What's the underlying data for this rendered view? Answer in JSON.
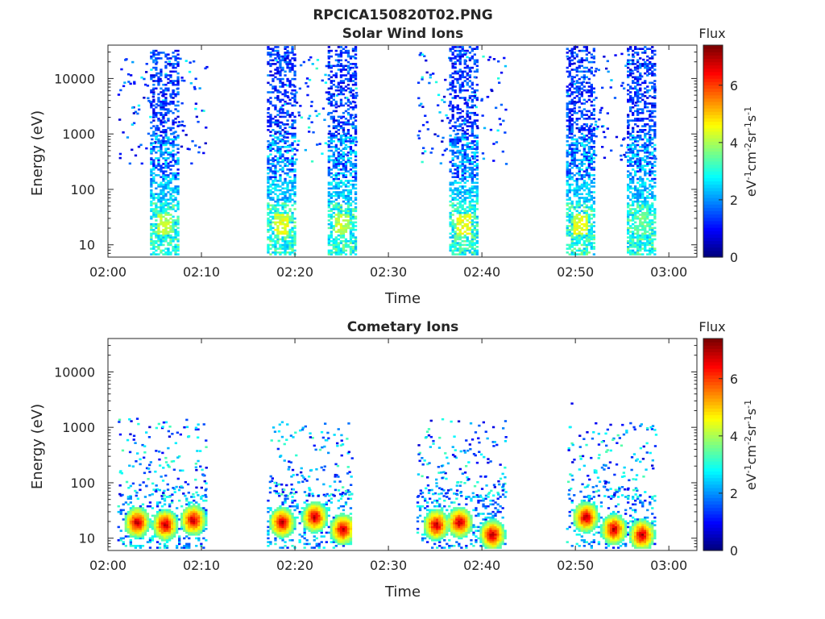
{
  "figure": {
    "title": "RPCICA150820T02.PNG"
  },
  "chart_data": [
    {
      "type": "heatmap",
      "title": "Solar Wind Ions",
      "xlabel": "Time",
      "ylabel": "Energy (eV)",
      "x_tick_labels": [
        "02:00",
        "02:10",
        "02:20",
        "02:30",
        "02:40",
        "02:50",
        "03:00"
      ],
      "x_tick_minutes": [
        0,
        10,
        20,
        30,
        40,
        50,
        60
      ],
      "xlim_minutes": [
        0,
        63
      ],
      "y_scale": "log",
      "ylim": [
        6,
        40000
      ],
      "y_tick_values": [
        10,
        100,
        1000,
        10000
      ],
      "y_tick_labels": [
        "10",
        "100",
        "1000",
        "10000"
      ],
      "colorbar": {
        "title": "Flux",
        "label": "eV-1cm-2sr-1s-1",
        "range": [
          0,
          7.4
        ],
        "tick_values": [
          0,
          2,
          4,
          6
        ],
        "tick_labels": [
          "0",
          "2",
          "4",
          "6"
        ],
        "colormap": "jet"
      },
      "bursts": [
        {
          "start_min": 4.5,
          "end_min": 7.5,
          "emin": 6,
          "emax": 35000,
          "peak_flux": 4.5,
          "peak_energy": 25
        },
        {
          "start_min": 17,
          "end_min": 20,
          "emin": 6,
          "emax": 40000,
          "peak_flux": 4.8,
          "peak_energy": 25
        },
        {
          "start_min": 23.5,
          "end_min": 26.5,
          "emin": 6,
          "emax": 40000,
          "peak_flux": 4.5,
          "peak_energy": 25
        },
        {
          "start_min": 36.5,
          "end_min": 39.5,
          "emin": 6,
          "emax": 40000,
          "peak_flux": 4.8,
          "peak_energy": 25
        },
        {
          "start_min": 49,
          "end_min": 52,
          "emin": 6,
          "emax": 40000,
          "peak_flux": 4.8,
          "peak_energy": 25
        },
        {
          "start_min": 55.5,
          "end_min": 58.5,
          "emin": 6,
          "emax": 40000,
          "peak_flux": 3.8,
          "peak_energy": 25
        }
      ],
      "scatter_regions": [
        {
          "start_min": 1,
          "end_min": 10.5,
          "emin": 300,
          "emax": 25000
        },
        {
          "start_min": 17,
          "end_min": 26.5,
          "emin": 300,
          "emax": 30000
        },
        {
          "start_min": 33,
          "end_min": 42.5,
          "emin": 300,
          "emax": 30000
        },
        {
          "start_min": 49,
          "end_min": 58.5,
          "emin": 300,
          "emax": 30000
        }
      ]
    },
    {
      "type": "heatmap",
      "title": "Cometary Ions",
      "xlabel": "Time",
      "ylabel": "Energy (eV)",
      "x_tick_labels": [
        "02:00",
        "02:10",
        "02:20",
        "02:30",
        "02:40",
        "02:50",
        "03:00"
      ],
      "x_tick_minutes": [
        0,
        10,
        20,
        30,
        40,
        50,
        60
      ],
      "xlim_minutes": [
        0,
        63
      ],
      "y_scale": "log",
      "ylim": [
        6,
        40000
      ],
      "y_tick_values": [
        10,
        100,
        1000,
        10000
      ],
      "y_tick_labels": [
        "10",
        "100",
        "1000",
        "10000"
      ],
      "colorbar": {
        "title": "Flux",
        "label": "eV-1cm-2sr-1s-1",
        "range": [
          0,
          7.4
        ],
        "tick_values": [
          0,
          2,
          4,
          6
        ],
        "tick_labels": [
          "0",
          "2",
          "4",
          "6"
        ],
        "colormap": "jet"
      },
      "bursts": [
        {
          "start_min": 1,
          "end_min": 10.5,
          "emin": 6,
          "emax": 1500,
          "hot_spots": [
            [
              3,
              20
            ],
            [
              6,
              18
            ],
            [
              9,
              22
            ]
          ]
        },
        {
          "start_min": 17,
          "end_min": 26,
          "emin": 6,
          "emax": 1300,
          "hot_spots": [
            [
              18.5,
              20
            ],
            [
              22,
              25
            ],
            [
              25,
              15
            ]
          ]
        },
        {
          "start_min": 33,
          "end_min": 42.5,
          "emin": 6,
          "emax": 1600,
          "hot_spots": [
            [
              35,
              18
            ],
            [
              37.5,
              20
            ],
            [
              41,
              12
            ]
          ]
        },
        {
          "start_min": 49,
          "end_min": 58.5,
          "emin": 6,
          "emax": 1300,
          "hot_spots": [
            [
              51,
              25
            ],
            [
              54,
              15
            ],
            [
              57,
              12
            ]
          ]
        }
      ],
      "outliers": [
        {
          "minute": 49.5,
          "energy": 2800
        }
      ]
    }
  ]
}
